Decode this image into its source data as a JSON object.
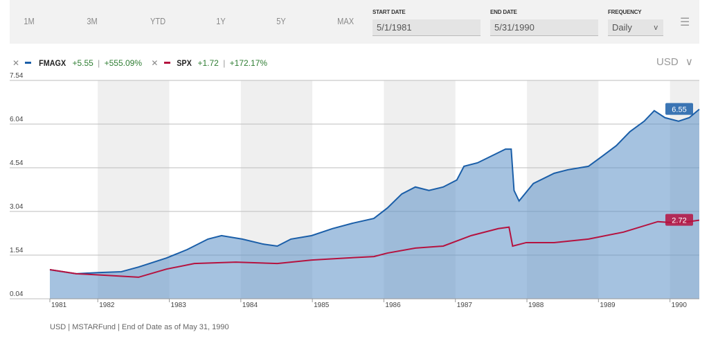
{
  "ranges": [
    "1M",
    "3M",
    "YTD",
    "1Y",
    "5Y",
    "MAX"
  ],
  "start_date": {
    "label": "START DATE",
    "value": "5/1/1981"
  },
  "end_date": {
    "label": "END DATE",
    "value": "5/31/1990"
  },
  "frequency": {
    "label": "FREQUENCY",
    "value": "Daily"
  },
  "menu_icon": "list-icon",
  "currency": "USD",
  "legend": [
    {
      "ticker": "FMAGX",
      "change": "+5.55",
      "pct": "+555.09%",
      "color": "#1a5ea8"
    },
    {
      "ticker": "SPX",
      "change": "+1.72",
      "pct": "+172.17%",
      "color": "#b5123f"
    }
  ],
  "footer": "USD | MSTARFund | End of Date as of May 31, 1990",
  "chart_data": {
    "type": "area",
    "xlim": [
      1981.33,
      1990.41
    ],
    "ylim": [
      0.04,
      7.54
    ],
    "yticks": [
      7.54,
      6.04,
      4.54,
      3.04,
      1.54,
      0.04
    ],
    "xticks": [
      "1981",
      "1982",
      "1983",
      "1984",
      "1985",
      "1986",
      "1987",
      "1988",
      "1989",
      "1990"
    ],
    "series": [
      {
        "name": "FMAGX",
        "end_label": "6.55",
        "color": "#1a5ea8",
        "points": [
          [
            1981.33,
            1.04
          ],
          [
            1981.7,
            0.9
          ],
          [
            1982.0,
            0.94
          ],
          [
            1982.33,
            0.97
          ],
          [
            1982.57,
            1.13
          ],
          [
            1982.96,
            1.44
          ],
          [
            1983.25,
            1.73
          ],
          [
            1983.54,
            2.09
          ],
          [
            1983.73,
            2.21
          ],
          [
            1984.02,
            2.09
          ],
          [
            1984.31,
            1.92
          ],
          [
            1984.51,
            1.85
          ],
          [
            1984.7,
            2.09
          ],
          [
            1984.99,
            2.21
          ],
          [
            1985.28,
            2.45
          ],
          [
            1985.57,
            2.64
          ],
          [
            1985.86,
            2.8
          ],
          [
            1986.05,
            3.16
          ],
          [
            1986.25,
            3.64
          ],
          [
            1986.44,
            3.88
          ],
          [
            1986.63,
            3.76
          ],
          [
            1986.83,
            3.88
          ],
          [
            1987.02,
            4.12
          ],
          [
            1987.12,
            4.59
          ],
          [
            1987.31,
            4.71
          ],
          [
            1987.51,
            4.95
          ],
          [
            1987.7,
            5.18
          ],
          [
            1987.78,
            5.18
          ],
          [
            1987.82,
            3.76
          ],
          [
            1987.89,
            3.4
          ],
          [
            1988.09,
            4.0
          ],
          [
            1988.38,
            4.35
          ],
          [
            1988.57,
            4.47
          ],
          [
            1988.86,
            4.59
          ],
          [
            1989.06,
            4.95
          ],
          [
            1989.25,
            5.3
          ],
          [
            1989.44,
            5.78
          ],
          [
            1989.64,
            6.14
          ],
          [
            1989.78,
            6.5
          ],
          [
            1989.93,
            6.26
          ],
          [
            1990.12,
            6.14
          ],
          [
            1990.27,
            6.26
          ],
          [
            1990.41,
            6.55
          ]
        ]
      },
      {
        "name": "SPX",
        "end_label": "2.72",
        "color": "#b5123f",
        "points": [
          [
            1981.33,
            1.04
          ],
          [
            1981.7,
            0.9
          ],
          [
            1982.09,
            0.85
          ],
          [
            1982.57,
            0.78
          ],
          [
            1982.96,
            1.06
          ],
          [
            1983.35,
            1.25
          ],
          [
            1983.93,
            1.3
          ],
          [
            1984.51,
            1.25
          ],
          [
            1984.99,
            1.37
          ],
          [
            1985.47,
            1.44
          ],
          [
            1985.86,
            1.49
          ],
          [
            1986.05,
            1.61
          ],
          [
            1986.44,
            1.78
          ],
          [
            1986.83,
            1.85
          ],
          [
            1987.22,
            2.21
          ],
          [
            1987.6,
            2.45
          ],
          [
            1987.75,
            2.5
          ],
          [
            1987.8,
            1.85
          ],
          [
            1987.99,
            1.97
          ],
          [
            1988.38,
            1.97
          ],
          [
            1988.86,
            2.09
          ],
          [
            1989.35,
            2.33
          ],
          [
            1989.83,
            2.69
          ],
          [
            1990.12,
            2.64
          ],
          [
            1990.41,
            2.74
          ]
        ]
      }
    ]
  }
}
